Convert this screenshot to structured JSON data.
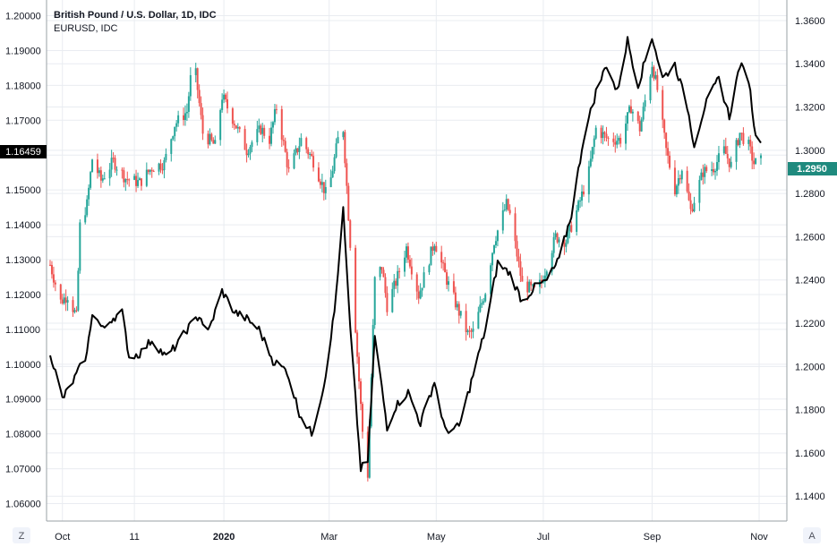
{
  "header": {
    "title": "British Pound / U.S. Dollar, 1D, IDC",
    "subtitle": "EURUSD, IDC"
  },
  "bottom_bar": {
    "left_button": "Z",
    "right_button": "A"
  },
  "colors": {
    "up": "#26a69a",
    "down": "#ef5350",
    "overlay": "#000000",
    "grid": "#e9ecf1",
    "axis_line": "#9aa0a6",
    "price_tag_gbp": "#1f8a7e",
    "price_tag_eur": "#000000"
  },
  "chart_data": {
    "type": "candlestick",
    "title": "British Pound / U.S. Dollar, 1D, IDC",
    "x_ticks": [
      "Oct",
      "11",
      "2020",
      "Mar",
      "May",
      "Jul",
      "Sep",
      "Nov"
    ],
    "x_range": [
      "2019-09-24",
      "2020-11-02"
    ],
    "grid": true,
    "left_axis": {
      "series": "EURUSD",
      "ylim": [
        1.055,
        1.2045
      ],
      "ticks": [
        "1.20000",
        "1.19000",
        "1.18000",
        "1.17000",
        "1.16000",
        "1.15000",
        "1.14000",
        "1.13000",
        "1.12000",
        "1.11000",
        "1.10000",
        "1.09000",
        "1.08000",
        "1.07000",
        "1.06000"
      ],
      "last_value_tag": "1.16459"
    },
    "right_axis": {
      "series": "GBPUSD",
      "ylim": [
        1.1285,
        1.3695
      ],
      "ticks": [
        "1.3600",
        "1.3400",
        "1.3200",
        "1.3000",
        "1.2800",
        "1.2600",
        "1.2400",
        "1.2200",
        "1.2000",
        "1.1800",
        "1.1600",
        "1.1400"
      ],
      "last_value_tag": "1.2950"
    },
    "series": [
      {
        "name": "British Pound / U.S. Dollar",
        "style": "candles",
        "axis": "right",
        "close_keypoints": [
          [
            "2019-09-24",
            1.247
          ],
          [
            "2019-09-30",
            1.23
          ],
          [
            "2019-10-04",
            1.233
          ],
          [
            "2019-10-09",
            1.223
          ],
          [
            "2019-10-11",
            1.265
          ],
          [
            "2019-10-15",
            1.275
          ],
          [
            "2019-10-18",
            1.296
          ],
          [
            "2019-10-23",
            1.286
          ],
          [
            "2019-10-30",
            1.295
          ],
          [
            "2019-11-06",
            1.287
          ],
          [
            "2019-11-14",
            1.285
          ],
          [
            "2019-11-21",
            1.292
          ],
          [
            "2019-11-28",
            1.294
          ],
          [
            "2019-12-04",
            1.312
          ],
          [
            "2019-12-11",
            1.318
          ],
          [
            "2019-12-13",
            1.333
          ],
          [
            "2019-12-16",
            1.335
          ],
          [
            "2019-12-20",
            1.308
          ],
          [
            "2019-12-27",
            1.302
          ],
          [
            "2019-12-31",
            1.325
          ],
          [
            "2020-01-07",
            1.313
          ],
          [
            "2020-01-14",
            1.3
          ],
          [
            "2020-01-22",
            1.31
          ],
          [
            "2020-01-27",
            1.305
          ],
          [
            "2020-01-31",
            1.32
          ],
          [
            "2020-02-07",
            1.29
          ],
          [
            "2020-02-14",
            1.305
          ],
          [
            "2020-02-21",
            1.295
          ],
          [
            "2020-02-28",
            1.28
          ],
          [
            "2020-03-02",
            1.287
          ],
          [
            "2020-03-06",
            1.305
          ],
          [
            "2020-03-09",
            1.31
          ],
          [
            "2020-03-12",
            1.27
          ],
          [
            "2020-03-17",
            1.205
          ],
          [
            "2020-03-20",
            1.17
          ],
          [
            "2020-03-23",
            1.15
          ],
          [
            "2020-03-27",
            1.24
          ],
          [
            "2020-03-31",
            1.246
          ],
          [
            "2020-04-03",
            1.228
          ],
          [
            "2020-04-08",
            1.239
          ],
          [
            "2020-04-14",
            1.255
          ],
          [
            "2020-04-21",
            1.233
          ],
          [
            "2020-04-30",
            1.258
          ],
          [
            "2020-05-07",
            1.24
          ],
          [
            "2020-05-14",
            1.225
          ],
          [
            "2020-05-19",
            1.215
          ],
          [
            "2020-05-22",
            1.216
          ],
          [
            "2020-05-29",
            1.235
          ],
          [
            "2020-06-03",
            1.258
          ],
          [
            "2020-06-10",
            1.275
          ],
          [
            "2020-06-12",
            1.27
          ],
          [
            "2020-06-19",
            1.238
          ],
          [
            "2020-06-26",
            1.235
          ],
          [
            "2020-06-30",
            1.239
          ],
          [
            "2020-07-08",
            1.26
          ],
          [
            "2020-07-14",
            1.258
          ],
          [
            "2020-07-21",
            1.274
          ],
          [
            "2020-07-27",
            1.29
          ],
          [
            "2020-07-31",
            1.31
          ],
          [
            "2020-08-07",
            1.305
          ],
          [
            "2020-08-14",
            1.305
          ],
          [
            "2020-08-20",
            1.32
          ],
          [
            "2020-08-25",
            1.31
          ],
          [
            "2020-09-01",
            1.34
          ],
          [
            "2020-09-04",
            1.328
          ],
          [
            "2020-09-09",
            1.3
          ],
          [
            "2020-09-14",
            1.282
          ],
          [
            "2020-09-18",
            1.292
          ],
          [
            "2020-09-23",
            1.272
          ],
          [
            "2020-09-30",
            1.29
          ],
          [
            "2020-10-06",
            1.292
          ],
          [
            "2020-10-12",
            1.3
          ],
          [
            "2020-10-16",
            1.293
          ],
          [
            "2020-10-21",
            1.308
          ],
          [
            "2020-10-26",
            1.302
          ],
          [
            "2020-10-29",
            1.294
          ],
          [
            "2020-11-02",
            1.295
          ]
        ]
      },
      {
        "name": "EURUSD",
        "style": "line",
        "axis": "left",
        "keypoints": [
          [
            "2019-09-24",
            1.1035
          ],
          [
            "2019-10-01",
            1.09
          ],
          [
            "2019-10-08",
            1.096
          ],
          [
            "2019-10-15",
            1.103
          ],
          [
            "2019-10-18",
            1.115
          ],
          [
            "2019-10-24",
            1.11
          ],
          [
            "2019-10-29",
            1.113
          ],
          [
            "2019-11-04",
            1.115
          ],
          [
            "2019-11-08",
            1.102
          ],
          [
            "2019-11-14",
            1.103
          ],
          [
            "2019-11-21",
            1.107
          ],
          [
            "2019-11-29",
            1.102
          ],
          [
            "2019-12-06",
            1.106
          ],
          [
            "2019-12-11",
            1.11
          ],
          [
            "2019-12-18",
            1.114
          ],
          [
            "2019-12-23",
            1.109
          ],
          [
            "2019-12-31",
            1.121
          ],
          [
            "2020-01-07",
            1.115
          ],
          [
            "2020-01-14",
            1.113
          ],
          [
            "2020-01-21",
            1.11
          ],
          [
            "2020-01-29",
            1.101
          ],
          [
            "2020-02-06",
            1.098
          ],
          [
            "2020-02-13",
            1.086
          ],
          [
            "2020-02-20",
            1.08
          ],
          [
            "2020-02-27",
            1.094
          ],
          [
            "2020-03-04",
            1.115
          ],
          [
            "2020-03-09",
            1.144
          ],
          [
            "2020-03-13",
            1.11
          ],
          [
            "2020-03-19",
            1.07
          ],
          [
            "2020-03-23",
            1.072
          ],
          [
            "2020-03-27",
            1.108
          ],
          [
            "2020-04-03",
            1.082
          ],
          [
            "2020-04-08",
            1.088
          ],
          [
            "2020-04-15",
            1.092
          ],
          [
            "2020-04-22",
            1.083
          ],
          [
            "2020-04-30",
            1.095
          ],
          [
            "2020-05-06",
            1.081
          ],
          [
            "2020-05-14",
            1.082
          ],
          [
            "2020-05-21",
            1.095
          ],
          [
            "2020-05-29",
            1.11
          ],
          [
            "2020-06-05",
            1.129
          ],
          [
            "2020-06-12",
            1.126
          ],
          [
            "2020-06-19",
            1.118
          ],
          [
            "2020-06-26",
            1.122
          ],
          [
            "2020-07-03",
            1.124
          ],
          [
            "2020-07-10",
            1.13
          ],
          [
            "2020-07-17",
            1.143
          ],
          [
            "2020-07-24",
            1.165
          ],
          [
            "2020-07-31",
            1.178
          ],
          [
            "2020-08-06",
            1.186
          ],
          [
            "2020-08-12",
            1.178
          ],
          [
            "2020-08-18",
            1.193
          ],
          [
            "2020-08-24",
            1.18
          ],
          [
            "2020-09-01",
            1.194
          ],
          [
            "2020-09-07",
            1.182
          ],
          [
            "2020-09-14",
            1.186
          ],
          [
            "2020-09-21",
            1.174
          ],
          [
            "2020-09-25",
            1.163
          ],
          [
            "2020-10-01",
            1.174
          ],
          [
            "2020-10-09",
            1.182
          ],
          [
            "2020-10-15",
            1.171
          ],
          [
            "2020-10-21",
            1.186
          ],
          [
            "2020-10-26",
            1.182
          ],
          [
            "2020-10-30",
            1.165
          ],
          [
            "2020-11-02",
            1.16459
          ]
        ]
      }
    ]
  }
}
